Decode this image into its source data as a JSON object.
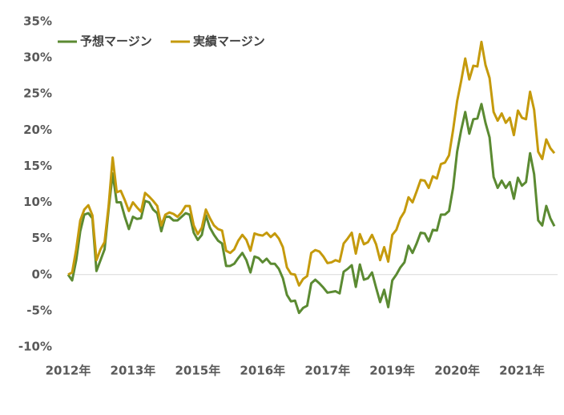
{
  "chart_data": {
    "type": "line",
    "categories": [
      "2012年",
      null,
      null,
      null,
      null,
      null,
      null,
      null,
      null,
      null,
      null,
      null,
      null,
      null,
      null,
      null,
      "2013年",
      null,
      null,
      null,
      null,
      null,
      null,
      null,
      null,
      null,
      null,
      null,
      null,
      null,
      null,
      null,
      "2015年",
      null,
      null,
      null,
      null,
      null,
      null,
      null,
      null,
      null,
      null,
      null,
      null,
      null,
      null,
      null,
      "2016年",
      null,
      null,
      null,
      null,
      null,
      null,
      null,
      null,
      null,
      null,
      null,
      null,
      null,
      null,
      null,
      "2017年",
      null,
      null,
      null,
      null,
      null,
      null,
      null,
      null,
      null,
      null,
      null,
      null,
      null,
      null,
      null,
      "2019年",
      null,
      null,
      null,
      null,
      null,
      null,
      null,
      null,
      null,
      null,
      null,
      null,
      null,
      null,
      null,
      "2020年",
      null,
      null,
      null,
      null,
      null,
      null,
      null,
      null,
      null,
      null,
      null,
      null,
      null,
      null,
      null,
      "2021年",
      null,
      null,
      null,
      null,
      null,
      null,
      null,
      null
    ],
    "series": [
      {
        "name": "予想マージン",
        "color": "#5b8a32",
        "values": [
          0,
          -0.8,
          2,
          6,
          8.3,
          8.5,
          7.8,
          0.5,
          2,
          3.5,
          9,
          14,
          10,
          10,
          8,
          6.3,
          8,
          7.7,
          7.8,
          10.2,
          10,
          9,
          8.5,
          6,
          8,
          8,
          7.5,
          7.5,
          8,
          8.5,
          8.3,
          5.8,
          4.8,
          5.5,
          8.2,
          6.5,
          5.5,
          4.7,
          4.3,
          1.2,
          1.2,
          1.5,
          2.3,
          3,
          2,
          0.3,
          2.5,
          2.3,
          1.7,
          2.2,
          1.5,
          1.5,
          0.8,
          -0.5,
          -2.8,
          -3.7,
          -3.6,
          -5.3,
          -4.6,
          -4.3,
          -1.2,
          -0.7,
          -1.2,
          -1.8,
          -2.5,
          -2.4,
          -2.3,
          -2.6,
          0.4,
          0.8,
          1.3,
          -1.7,
          1.4,
          -0.7,
          -0.5,
          0.3,
          -1.8,
          -3.8,
          -2.1,
          -4.5,
          -0.8,
          0,
          1,
          1.7,
          4,
          3,
          4.3,
          5.8,
          5.7,
          4.6,
          6.2,
          6.1,
          8.3,
          8.3,
          8.8,
          12,
          17,
          20,
          22.5,
          19.5,
          21.5,
          21.6,
          23.6,
          21,
          19,
          13.5,
          12,
          13,
          12,
          12.8,
          10.5,
          13.4,
          12.3,
          12.8,
          16.8,
          13.9,
          7.5,
          6.8,
          9.5,
          7.8,
          6.7
        ]
      },
      {
        "name": "実績マージン",
        "color": "#c59a0c",
        "values": [
          0,
          0.3,
          3.5,
          7.5,
          9,
          9.6,
          8.2,
          2,
          3.5,
          4.5,
          9.5,
          16.2,
          11.4,
          11.6,
          10.3,
          8.8,
          10,
          9.3,
          8.7,
          11.3,
          10.8,
          10.2,
          9.5,
          6.8,
          8.3,
          8.6,
          8.4,
          8,
          8.6,
          9.5,
          9.5,
          6.8,
          5.6,
          6.5,
          9,
          7.8,
          6.8,
          6.3,
          6.1,
          3.3,
          3,
          3.5,
          4.7,
          5.5,
          4.8,
          3.3,
          5.7,
          5.5,
          5.4,
          5.8,
          5.2,
          5.7,
          5,
          3.8,
          1,
          0.1,
          0,
          -1.5,
          -0.6,
          -0.2,
          3,
          3.4,
          3.2,
          2.5,
          1.6,
          1.7,
          2,
          1.8,
          4.3,
          5,
          5.8,
          2.9,
          5.6,
          4.2,
          4.5,
          5.5,
          4.2,
          2,
          3.8,
          1.8,
          5.5,
          6.2,
          7.8,
          8.7,
          10.7,
          10,
          11.5,
          13.1,
          13,
          12,
          13.6,
          13.3,
          15.3,
          15.5,
          16.5,
          20,
          24,
          26.8,
          29.9,
          27,
          28.9,
          28.8,
          32.2,
          29,
          27.2,
          22.5,
          21.3,
          22.3,
          21,
          21.7,
          19.3,
          22.7,
          21.7,
          21.5,
          25.3,
          22.8,
          17,
          16,
          18.7,
          17.5,
          16.8
        ]
      }
    ],
    "ylim": [
      -10,
      35
    ],
    "yticks": [
      {
        "value": -10,
        "label": "-10%"
      },
      {
        "value": -5,
        "label": "-5%"
      },
      {
        "value": 0,
        "label": "0%"
      },
      {
        "value": 5,
        "label": "5%"
      },
      {
        "value": 10,
        "label": "10%"
      },
      {
        "value": 15,
        "label": "15%"
      },
      {
        "value": 20,
        "label": "20%"
      },
      {
        "value": 25,
        "label": "25%"
      },
      {
        "value": 30,
        "label": "30%"
      },
      {
        "value": 35,
        "label": "35%"
      }
    ],
    "grid": false,
    "legend": "top-left"
  }
}
